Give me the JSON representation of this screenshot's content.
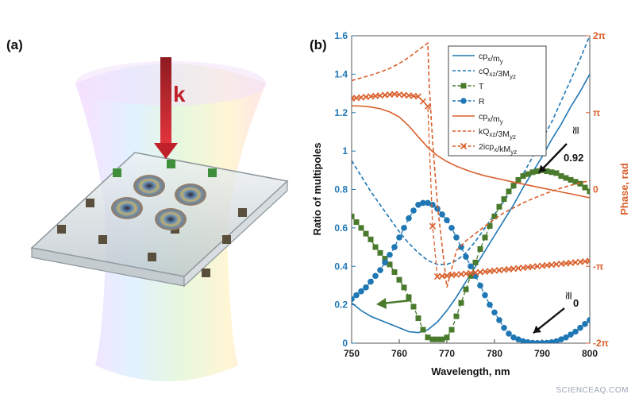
{
  "panel_a": {
    "label": "(a)",
    "wave_vector_label": "k"
  },
  "watermark": "SCIENCEAQ.COM",
  "colors": {
    "blue": "#1f77b4",
    "orange": "#d95f2b",
    "green": "#4a7a2c",
    "arrow_red": "#c0202a"
  },
  "chart_data": {
    "type": "line",
    "panel_label": "(b)",
    "xlabel": "Wavelength, nm",
    "ylabel": "Ratio of multipoles",
    "y2label": "Phase, rad",
    "xlim": [
      750,
      800
    ],
    "ylim": [
      0,
      1.6
    ],
    "y2lim": [
      -6.2832,
      6.2832
    ],
    "x_ticks": [
      750,
      760,
      770,
      780,
      790,
      800
    ],
    "y_ticks": [
      0,
      0.2,
      0.4,
      0.6,
      0.8,
      1,
      1.2,
      1.4,
      1.6
    ],
    "y_tick_labels": [
      "0",
      "0.2",
      "0.4",
      "0.6",
      "0.8",
      "1",
      "1.2",
      "1.4",
      "1.6"
    ],
    "y2_ticks": [
      {
        "value": -6.2832,
        "label": "-2π"
      },
      {
        "value": -3.1416,
        "label": "-π"
      },
      {
        "value": 0,
        "label": "0"
      },
      {
        "value": 3.1416,
        "label": "π"
      },
      {
        "value": 6.2832,
        "label": "2π"
      }
    ],
    "legend": {
      "placement": "top-right",
      "entries": [
        {
          "label": "cp",
          "sub1": "x",
          "mid": "/m",
          "sub2": "y",
          "series": 0
        },
        {
          "label": "cQ",
          "sub1": "xz",
          "mid": "/3M",
          "sub2": "yz",
          "series": 1
        },
        {
          "label": "T",
          "sub1": "",
          "mid": "",
          "sub2": "",
          "series": 2
        },
        {
          "label": "R",
          "sub1": "",
          "mid": "",
          "sub2": "",
          "series": 3
        },
        {
          "label": "cp",
          "sub1": "x",
          "mid": "/m",
          "sub2": "y",
          "series": 4
        },
        {
          "label": "kQ",
          "sub1": "xz",
          "mid": "/3M",
          "sub2": "yz",
          "series": 5
        },
        {
          "label": "2icp",
          "sub1": "x",
          "mid": "/kM",
          "sub2": "yz",
          "series": 6
        }
      ]
    },
    "series": [
      {
        "axis": "left",
        "color": "#1f77b4",
        "style": "solid",
        "marker": "none",
        "x": [
          750,
          752,
          754,
          756,
          758,
          760,
          762,
          764,
          766,
          768,
          770,
          772,
          774,
          776,
          778,
          780,
          782,
          784,
          786,
          788,
          790,
          792,
          794,
          796,
          798,
          800
        ],
        "y": [
          0.21,
          0.17,
          0.14,
          0.12,
          0.1,
          0.08,
          0.06,
          0.055,
          0.07,
          0.11,
          0.17,
          0.24,
          0.32,
          0.4,
          0.48,
          0.56,
          0.64,
          0.72,
          0.81,
          0.89,
          0.97,
          1.06,
          1.14,
          1.23,
          1.31,
          1.4
        ]
      },
      {
        "axis": "left",
        "color": "#1f77b4",
        "style": "dashed",
        "marker": "none",
        "x": [
          750,
          752,
          754,
          756,
          758,
          760,
          762,
          764,
          766,
          768,
          770,
          772,
          774,
          776,
          778,
          780,
          782,
          784,
          786,
          788,
          790,
          792,
          794,
          796,
          798,
          800
        ],
        "y": [
          0.95,
          0.87,
          0.79,
          0.72,
          0.65,
          0.58,
          0.52,
          0.47,
          0.43,
          0.41,
          0.41,
          0.43,
          0.47,
          0.53,
          0.6,
          0.67,
          0.74,
          0.81,
          0.88,
          0.97,
          1.06,
          1.15,
          1.26,
          1.37,
          1.48,
          1.6
        ]
      },
      {
        "axis": "left",
        "color": "#4a7a2c",
        "style": "dashed",
        "marker": "square",
        "x": [
          750,
          751,
          752,
          753,
          754,
          755,
          756,
          757,
          758,
          759,
          760,
          761,
          762,
          763,
          764,
          765,
          766,
          767,
          768,
          769,
          770,
          771,
          772,
          773,
          774,
          775,
          776,
          777,
          778,
          779,
          780,
          781,
          782,
          783,
          784,
          785,
          786,
          787,
          788,
          789,
          790,
          791,
          792,
          793,
          794,
          795,
          796,
          797,
          798,
          799,
          800
        ],
        "y": [
          0.66,
          0.63,
          0.6,
          0.57,
          0.54,
          0.5,
          0.47,
          0.44,
          0.41,
          0.37,
          0.33,
          0.29,
          0.24,
          0.19,
          0.13,
          0.07,
          0.03,
          0.02,
          0.02,
          0.02,
          0.03,
          0.07,
          0.14,
          0.21,
          0.28,
          0.35,
          0.42,
          0.49,
          0.55,
          0.61,
          0.66,
          0.71,
          0.75,
          0.79,
          0.82,
          0.85,
          0.87,
          0.88,
          0.89,
          0.895,
          0.9,
          0.895,
          0.89,
          0.885,
          0.87,
          0.86,
          0.85,
          0.84,
          0.83,
          0.81,
          0.79
        ]
      },
      {
        "axis": "left",
        "color": "#1f77b4",
        "style": "dashed",
        "marker": "circle",
        "x": [
          750,
          751,
          752,
          753,
          754,
          755,
          756,
          757,
          758,
          759,
          760,
          761,
          762,
          763,
          764,
          765,
          766,
          767,
          768,
          769,
          770,
          771,
          772,
          773,
          774,
          775,
          776,
          777,
          778,
          779,
          780,
          781,
          782,
          783,
          784,
          785,
          786,
          787,
          788,
          789,
          790,
          791,
          792,
          793,
          794,
          795,
          796,
          797,
          798,
          799,
          800
        ],
        "y": [
          0.23,
          0.25,
          0.27,
          0.29,
          0.32,
          0.35,
          0.38,
          0.42,
          0.46,
          0.5,
          0.55,
          0.6,
          0.65,
          0.69,
          0.72,
          0.73,
          0.73,
          0.72,
          0.7,
          0.67,
          0.64,
          0.6,
          0.55,
          0.5,
          0.45,
          0.4,
          0.35,
          0.3,
          0.25,
          0.2,
          0.16,
          0.12,
          0.08,
          0.05,
          0.03,
          0.02,
          0.01,
          0.005,
          0.002,
          0.001,
          0.001,
          0.002,
          0.005,
          0.01,
          0.02,
          0.03,
          0.045,
          0.06,
          0.08,
          0.1,
          0.12
        ]
      },
      {
        "axis": "right",
        "color": "#d95f2b",
        "style": "solid",
        "marker": "none",
        "x": [
          750,
          752,
          754,
          756,
          758,
          760,
          762,
          764,
          766,
          768,
          770,
          772,
          774,
          776,
          778,
          780,
          782,
          784,
          786,
          788,
          790,
          792,
          794,
          796,
          798,
          800
        ],
        "y": [
          3.42,
          3.41,
          3.37,
          3.3,
          3.17,
          2.96,
          2.6,
          2.15,
          1.72,
          1.38,
          1.14,
          0.95,
          0.8,
          0.67,
          0.56,
          0.47,
          0.39,
          0.3,
          0.22,
          0.14,
          0.06,
          -0.02,
          -0.1,
          -0.18,
          -0.26,
          -0.34
        ]
      },
      {
        "axis": "right",
        "color": "#d95f2b",
        "style": "dashed",
        "marker": "none",
        "x": [
          750,
          752,
          754,
          756,
          758,
          760,
          762,
          764,
          766,
          766.3,
          767,
          768,
          770,
          772,
          774,
          776,
          778,
          780,
          782,
          784,
          786,
          788,
          790,
          792,
          794,
          796,
          798,
          800
        ],
        "y": [
          4.45,
          4.56,
          4.67,
          4.8,
          4.95,
          5.15,
          5.4,
          5.7,
          5.98,
          4.2,
          2.0,
          -0.6,
          -4.0,
          -2.5,
          -2.1,
          -1.8,
          -1.5,
          -1.2,
          -0.95,
          -0.75,
          -0.55,
          -0.38,
          -0.22,
          -0.07,
          0.06,
          0.17,
          0.27,
          0.36
        ]
      },
      {
        "axis": "right",
        "color": "#d95f2b",
        "style": "dashed",
        "marker": "cross",
        "x": [
          750,
          751,
          752,
          753,
          754,
          755,
          756,
          757,
          758,
          759,
          760,
          761,
          762,
          763,
          764,
          765,
          766,
          767,
          768,
          769,
          770,
          771,
          772,
          773,
          774,
          775,
          776,
          777,
          778,
          779,
          780,
          781,
          782,
          783,
          784,
          785,
          786,
          787,
          788,
          789,
          790,
          791,
          792,
          793,
          794,
          795,
          796,
          797,
          798,
          799,
          800
        ],
        "y": [
          3.72,
          3.74,
          3.76,
          3.78,
          3.8,
          3.82,
          3.84,
          3.86,
          3.88,
          3.9,
          3.88,
          3.86,
          3.84,
          3.82,
          3.8,
          3.6,
          3.4,
          -1.5,
          -3.56,
          -3.54,
          -3.52,
          -3.5,
          -3.48,
          -3.46,
          -3.44,
          -3.42,
          -3.4,
          -3.38,
          -3.36,
          -3.34,
          -3.32,
          -3.3,
          -3.28,
          -3.26,
          -3.24,
          -3.22,
          -3.2,
          -3.18,
          -3.16,
          -3.14,
          -3.12,
          -3.1,
          -3.08,
          -3.06,
          -3.04,
          -3.02,
          -3.0,
          -2.98,
          -2.96,
          -2.94,
          -2.92
        ]
      }
    ],
    "annotations": [
      {
        "text": "≅",
        "approx_text": "0.92",
        "target_x": 789,
        "target_y": 0.83
      },
      {
        "text": "≅",
        "approx_text": "0",
        "target_x": 788,
        "target_y": 0.02
      }
    ]
  }
}
